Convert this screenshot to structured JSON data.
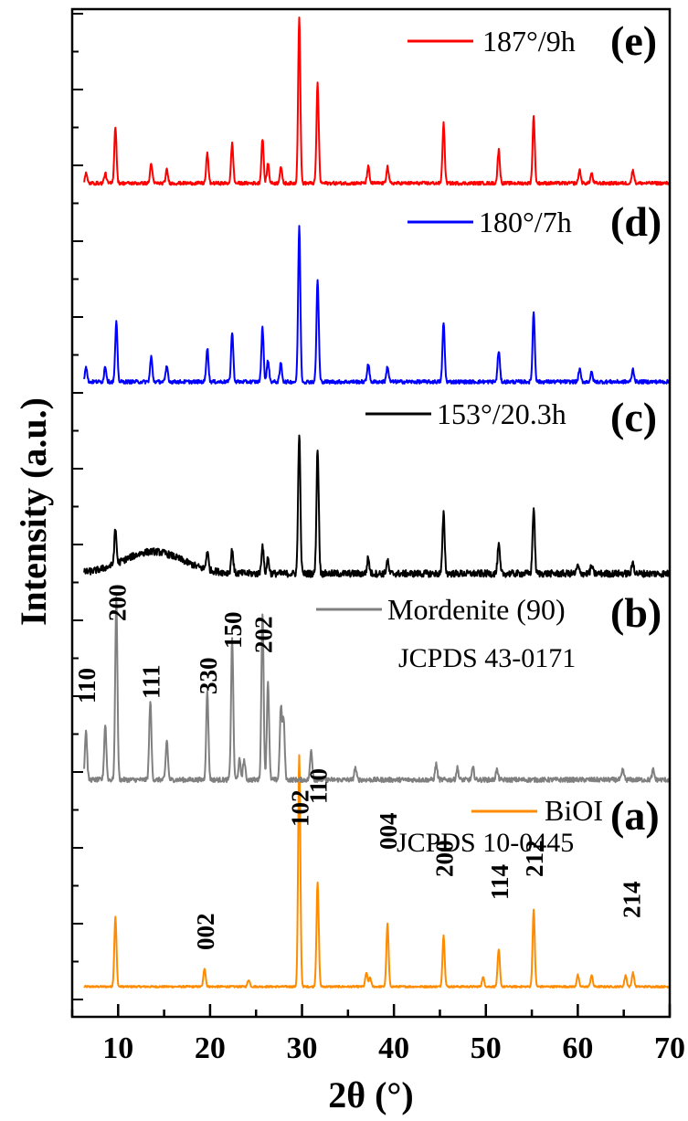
{
  "chart_data": {
    "type": "line",
    "xlabel": "2θ (°)",
    "ylabel": "Intensity (a.u.)",
    "xlim": [
      5,
      70
    ],
    "xticks": [
      10,
      20,
      30,
      40,
      50,
      60,
      70
    ],
    "series": [
      {
        "name": "BiOI",
        "panel": "(a)",
        "reference": "JCPDS 10-0445",
        "color": "#ff8c00",
        "baseline": 0.02,
        "noise": 0.004,
        "peaks": [
          [
            9.7,
            0.3
          ],
          [
            19.4,
            0.08
          ],
          [
            24.2,
            0.03
          ],
          [
            29.7,
            1.0
          ],
          [
            31.7,
            0.45
          ],
          [
            37.0,
            0.06
          ],
          [
            37.4,
            0.04
          ],
          [
            39.3,
            0.27
          ],
          [
            45.4,
            0.22
          ],
          [
            49.7,
            0.04
          ],
          [
            51.4,
            0.16
          ],
          [
            55.2,
            0.33
          ],
          [
            60.0,
            0.05
          ],
          [
            61.5,
            0.05
          ],
          [
            65.2,
            0.05
          ],
          [
            66.0,
            0.06
          ]
        ],
        "hkl": [
          {
            "label": "002",
            "x": 19.4
          },
          {
            "label": "102",
            "x": 29.7
          },
          {
            "label": "110",
            "x": 31.7
          },
          {
            "label": "004",
            "x": 39.3
          },
          {
            "label": "200",
            "x": 45.4
          },
          {
            "label": "114",
            "x": 51.4
          },
          {
            "label": "212",
            "x": 55.2
          },
          {
            "label": "214",
            "x": 65.8
          }
        ]
      },
      {
        "name": "Mordenite (90)",
        "panel": "(b)",
        "reference": "JCPDS 43-0171",
        "color": "#808080",
        "baseline": 0.03,
        "noise": 0.012,
        "peaks": [
          [
            6.5,
            0.25
          ],
          [
            8.6,
            0.28
          ],
          [
            9.8,
            0.92
          ],
          [
            13.5,
            0.4
          ],
          [
            15.3,
            0.2
          ],
          [
            19.7,
            0.45
          ],
          [
            22.4,
            0.72
          ],
          [
            23.2,
            0.1
          ],
          [
            23.7,
            0.1
          ],
          [
            25.7,
            0.85
          ],
          [
            26.3,
            0.5
          ],
          [
            27.7,
            0.36
          ],
          [
            28.0,
            0.3
          ],
          [
            31.0,
            0.15
          ],
          [
            35.8,
            0.06
          ],
          [
            44.6,
            0.08
          ],
          [
            46.9,
            0.06
          ],
          [
            48.6,
            0.06
          ],
          [
            51.2,
            0.05
          ],
          [
            64.9,
            0.05
          ],
          [
            68.2,
            0.05
          ]
        ],
        "hkl": [
          {
            "label": "110",
            "x": 6.5
          },
          {
            "label": "200",
            "x": 9.8
          },
          {
            "label": "111",
            "x": 13.5
          },
          {
            "label": "330",
            "x": 19.7
          },
          {
            "label": "150",
            "x": 22.4
          },
          {
            "label": "202",
            "x": 25.7
          }
        ]
      },
      {
        "name": "153°/20.3h",
        "panel": "(c)",
        "color": "#000000",
        "baseline": 0.03,
        "noise": 0.022,
        "hump": {
          "center": 13.8,
          "width": 3.2,
          "height": 0.14
        },
        "peaks": [
          [
            9.7,
            0.22
          ],
          [
            19.7,
            0.12
          ],
          [
            22.4,
            0.15
          ],
          [
            25.7,
            0.18
          ],
          [
            26.3,
            0.1
          ],
          [
            29.7,
            0.9
          ],
          [
            31.7,
            0.8
          ],
          [
            37.2,
            0.1
          ],
          [
            39.3,
            0.08
          ],
          [
            45.4,
            0.38
          ],
          [
            51.4,
            0.18
          ],
          [
            55.2,
            0.42
          ],
          [
            60.0,
            0.05
          ],
          [
            61.5,
            0.05
          ],
          [
            66.0,
            0.07
          ]
        ]
      },
      {
        "name": "180°/7h",
        "panel": "(d)",
        "color": "#0000ff",
        "baseline": 0.03,
        "noise": 0.012,
        "peaks": [
          [
            6.5,
            0.1
          ],
          [
            8.6,
            0.1
          ],
          [
            9.8,
            0.38
          ],
          [
            13.6,
            0.16
          ],
          [
            15.3,
            0.1
          ],
          [
            19.7,
            0.22
          ],
          [
            22.4,
            0.32
          ],
          [
            25.7,
            0.35
          ],
          [
            26.3,
            0.14
          ],
          [
            27.7,
            0.12
          ],
          [
            29.7,
            1.0
          ],
          [
            31.7,
            0.66
          ],
          [
            37.2,
            0.12
          ],
          [
            39.3,
            0.1
          ],
          [
            45.4,
            0.38
          ],
          [
            51.4,
            0.2
          ],
          [
            55.2,
            0.45
          ],
          [
            60.2,
            0.08
          ],
          [
            61.5,
            0.06
          ],
          [
            66.0,
            0.08
          ]
        ]
      },
      {
        "name": "187°/9h",
        "panel": "(e)",
        "color": "#ff0000",
        "baseline": 0.03,
        "noise": 0.01,
        "peaks": [
          [
            6.5,
            0.06
          ],
          [
            8.6,
            0.06
          ],
          [
            9.7,
            0.34
          ],
          [
            13.6,
            0.12
          ],
          [
            15.3,
            0.08
          ],
          [
            19.7,
            0.18
          ],
          [
            22.4,
            0.24
          ],
          [
            25.7,
            0.27
          ],
          [
            26.3,
            0.12
          ],
          [
            27.7,
            0.1
          ],
          [
            29.7,
            1.0
          ],
          [
            31.7,
            0.6
          ],
          [
            37.2,
            0.1
          ],
          [
            39.3,
            0.1
          ],
          [
            45.4,
            0.36
          ],
          [
            51.4,
            0.2
          ],
          [
            55.2,
            0.4
          ],
          [
            60.2,
            0.08
          ],
          [
            61.5,
            0.06
          ],
          [
            66.0,
            0.08
          ]
        ]
      }
    ]
  }
}
